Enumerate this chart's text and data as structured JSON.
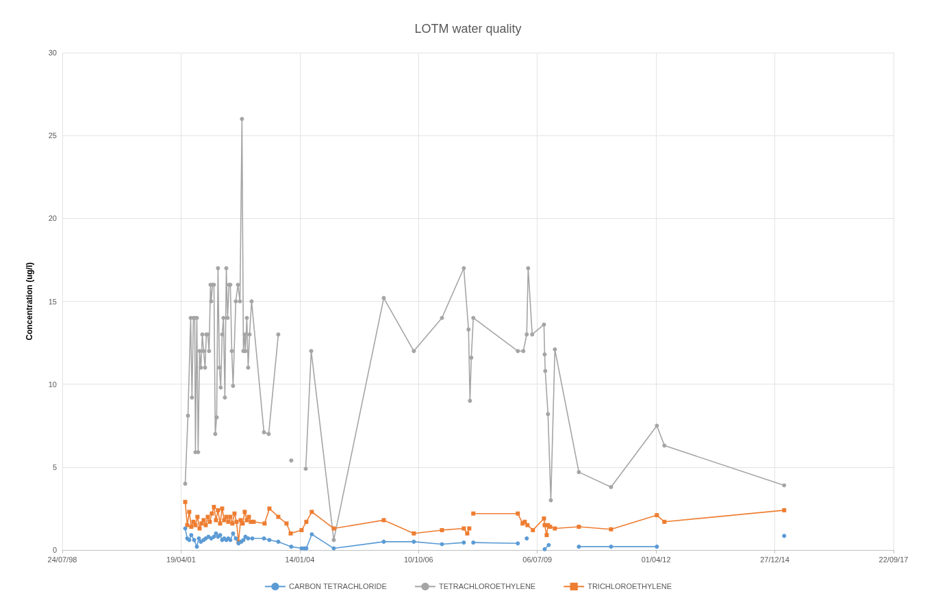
{
  "chart_data": {
    "type": "line",
    "title": "LOTM water quality",
    "ylabel": "Concentration (ug/l)",
    "xlim": [
      "1998-07-24",
      "2017-09-22"
    ],
    "xticks": [
      {
        "value": "1998-07-24",
        "label": "24/07/98"
      },
      {
        "value": "2001-04-19",
        "label": "19/04/01"
      },
      {
        "value": "2004-01-14",
        "label": "14/01/04"
      },
      {
        "value": "2006-10-10",
        "label": "10/10/06"
      },
      {
        "value": "2009-07-06",
        "label": "06/07/09"
      },
      {
        "value": "2012-04-01",
        "label": "01/04/12"
      },
      {
        "value": "2014-12-27",
        "label": "27/12/14"
      },
      {
        "value": "2017-09-22",
        "label": "22/09/17"
      }
    ],
    "ylim": [
      0,
      30
    ],
    "yticks": [
      0,
      5,
      10,
      15,
      20,
      25,
      30
    ],
    "grid": true,
    "legend": "bottom",
    "series": [
      {
        "name": "CARBON TETRACHLORIDE",
        "color": "#5b9bd5",
        "marker": "circle",
        "x": [
          "2001-05-24",
          "2001-06-10",
          "2001-06-27",
          "2001-07-14",
          "2001-08-07",
          "2001-08-30",
          "2001-09-16",
          "2001-10-03",
          "2001-10-26",
          "2001-11-13",
          "2001-12-06",
          "2001-12-29",
          "2002-01-21",
          "2002-02-07",
          "2002-02-24",
          "2002-03-14",
          "2002-03-31",
          "2002-04-17",
          "2002-05-05",
          "2002-05-22",
          "2002-06-08",
          "2002-07-01",
          "2002-07-24",
          "2002-08-16",
          "2002-09-08",
          "2002-09-26",
          "2002-10-13",
          "2002-11-05",
          "2002-12-10",
          "2003-03-18",
          "2003-05-03",
          "2003-07-17",
          "2003-11-03",
          "2004-01-29",
          "2004-02-21",
          "2004-03-09",
          "2004-04-24",
          "2004-10-26",
          "2005-12-21",
          "2006-08-31",
          "2007-04-25",
          "2007-10-26",
          "2007-12-17",
          "2008-01-14",
          "2009-01-23",
          "2009-03-04",
          "2009-04-08",
          "2009-05-24",
          "2009-09-06",
          "2009-10-10",
          "2009-12-01",
          "2010-06-21",
          "2011-03-19",
          "2012-04-08",
          "2012-06-10",
          "2015-03-16"
        ],
        "values": [
          1.3,
          0.7,
          0.6,
          0.9,
          0.6,
          0.2,
          0.7,
          0.5,
          0.6,
          0.7,
          0.8,
          0.7,
          0.8,
          1.0,
          0.8,
          0.9,
          0.6,
          0.7,
          0.6,
          0.7,
          0.6,
          1.0,
          0.7,
          0.4,
          0.5,
          0.6,
          0.8,
          0.7,
          0.7,
          0.7,
          0.6,
          0.5,
          0.2,
          0.1,
          0.1,
          0.1,
          0.95,
          0.1,
          0.5,
          0.5,
          0.35,
          0.45,
          null,
          0.45,
          0.4,
          null,
          0.7,
          null,
          0.05,
          0.3,
          null,
          0.2,
          0.2,
          0.2,
          null,
          0.85
        ]
      },
      {
        "name": "TETRACHLOROETHYLENE",
        "color": "#a5a5a5",
        "marker": "circle",
        "x": [
          "2001-05-24",
          "2001-06-16",
          "2001-07-09",
          "2001-07-20",
          "2001-08-01",
          "2001-08-12",
          "2001-08-18",
          "2001-08-30",
          "2001-09-10",
          "2001-09-22",
          "2001-10-03",
          "2001-10-15",
          "2001-10-26",
          "2001-11-07",
          "2001-11-18",
          "2001-11-30",
          "2001-12-11",
          "2001-12-23",
          "2001-12-29",
          "2002-01-09",
          "2002-01-21",
          "2002-02-01",
          "2002-02-13",
          "2002-02-24",
          "2002-03-08",
          "2002-03-19",
          "2002-03-31",
          "2002-04-11",
          "2002-04-23",
          "2002-05-05",
          "2002-05-16",
          "2002-05-28",
          "2002-06-08",
          "2002-06-20",
          "2002-07-01",
          "2002-07-24",
          "2002-08-11",
          "2002-08-28",
          "2002-09-14",
          "2002-09-26",
          "2002-10-07",
          "2002-10-13",
          "2002-10-25",
          "2002-11-05",
          "2002-11-17",
          "2002-12-04",
          "2003-03-18",
          "2003-04-27",
          "2003-07-17",
          "2003-09-07",
          "2003-11-03",
          "2003-12-31",
          "2004-03-04",
          "2004-04-19",
          "2004-10-26",
          "2005-12-21",
          "2006-08-31",
          "2007-04-25",
          "2007-10-26",
          "2007-12-05",
          "2007-12-17",
          "2007-12-28",
          "2008-01-14",
          "2009-01-23",
          "2009-03-10",
          "2009-04-08",
          "2009-04-20",
          "2009-05-24",
          "2009-08-31",
          "2009-09-06",
          "2009-09-11",
          "2009-10-04",
          "2009-10-28",
          "2009-12-01",
          "2010-06-21",
          "2011-03-19",
          "2012-04-08",
          "2012-06-10",
          "2015-03-16"
        ],
        "values": [
          4.0,
          8.1,
          14,
          9.2,
          14,
          14,
          5.9,
          14,
          5.9,
          12,
          11,
          13,
          12,
          11,
          13,
          13,
          12,
          16,
          15,
          16,
          16,
          7,
          8,
          17,
          11,
          9.8,
          13,
          14,
          9.2,
          17,
          14,
          16,
          16,
          12,
          9.9,
          15,
          16,
          15,
          26,
          12,
          13,
          12,
          14,
          11,
          13,
          15,
          7.1,
          7.0,
          13,
          null,
          5.4,
          null,
          4.9,
          12,
          0.6,
          15.2,
          12,
          14,
          17,
          13.3,
          9,
          11.6,
          14,
          12,
          12,
          13,
          17,
          13,
          13.6,
          11.8,
          10.8,
          8.2,
          3.0,
          12.1,
          4.7,
          3.8,
          7.5,
          6.3,
          3.9
        ]
      },
      {
        "name": "TRICHLOROETHYLENE",
        "color": "#ed7d31",
        "marker": "square",
        "x": [
          "2001-05-24",
          "2001-06-10",
          "2001-06-27",
          "2001-07-14",
          "2001-08-01",
          "2001-08-18",
          "2001-09-04",
          "2001-09-22",
          "2001-10-09",
          "2001-10-26",
          "2001-11-13",
          "2001-11-30",
          "2001-12-17",
          "2002-01-03",
          "2002-01-21",
          "2002-02-07",
          "2002-02-24",
          "2002-03-14",
          "2002-03-31",
          "2002-04-17",
          "2002-05-05",
          "2002-05-22",
          "2002-06-08",
          "2002-06-25",
          "2002-07-13",
          "2002-07-30",
          "2002-08-16",
          "2002-09-03",
          "2002-09-20",
          "2002-10-07",
          "2002-10-25",
          "2002-11-11",
          "2002-11-28",
          "2002-12-21",
          "2003-03-23",
          "2003-05-03",
          "2003-07-17",
          "2003-09-24",
          "2003-10-29",
          "2004-01-29",
          "2004-03-09",
          "2004-04-24",
          "2004-10-26",
          "2005-12-21",
          "2006-08-31",
          "2007-04-25",
          "2007-10-26",
          "2007-11-24",
          "2007-12-11",
          "2007-12-17",
          "2008-01-14",
          "2009-01-23",
          "2009-03-04",
          "2009-03-22",
          "2009-04-14",
          "2009-05-30",
          "2009-08-31",
          "2009-09-06",
          "2009-09-23",
          "2009-10-04",
          "2009-10-22",
          "2009-12-01",
          "2010-06-21",
          "2011-03-19",
          "2012-04-08",
          "2012-06-10",
          "2015-03-16"
        ],
        "values": [
          2.9,
          1.5,
          2.3,
          1.4,
          1.7,
          1.5,
          2.0,
          1.3,
          1.6,
          1.8,
          1.5,
          2.0,
          1.7,
          2.2,
          2.6,
          1.8,
          2.4,
          1.6,
          2.5,
          1.8,
          2.0,
          1.7,
          2.0,
          1.6,
          2.2,
          1.7,
          0.5,
          1.8,
          1.6,
          2.3,
          1.8,
          2.0,
          1.7,
          1.7,
          1.6,
          2.5,
          2.0,
          1.6,
          1.0,
          1.2,
          1.7,
          2.3,
          1.3,
          1.8,
          1.0,
          1.2,
          1.3,
          1.0,
          1.3,
          null,
          2.2,
          2.2,
          1.6,
          1.7,
          1.5,
          1.2,
          1.9,
          1.5,
          0.9,
          1.5,
          1.4,
          1.3,
          1.4,
          1.25,
          2.1,
          1.7,
          2.4
        ]
      }
    ]
  }
}
